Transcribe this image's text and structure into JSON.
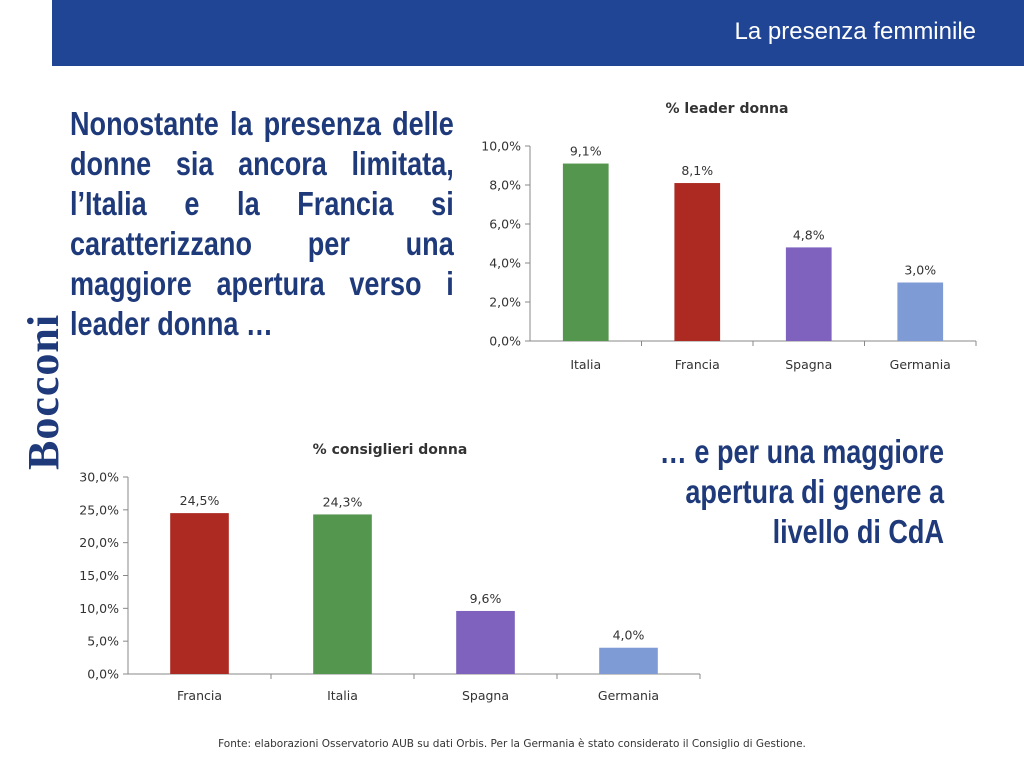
{
  "header": {
    "title": "La presenza femminile"
  },
  "logo": {
    "text": "Bocconi"
  },
  "headline_left": "Nonostante la presenza delle donne sia ancora limitata, l’Italia e la Francia si caratterizzano per una maggiore apertura verso i leader donna …",
  "headline_right": "… e per una maggiore apertura di genere a livello di CdA",
  "source": "Fonte: elaborazioni Osservatorio AUB su dati Orbis. Per la Germania è stato considerato il Consiglio di Gestione.",
  "colors": {
    "header_bg": "#1f4594",
    "headline": "#1f3a7a",
    "green": "#55964f",
    "red": "#ac2a22",
    "purple": "#7e62bd",
    "blue": "#7f9bd6"
  },
  "chart_data": [
    {
      "type": "bar",
      "title": "% leader donna",
      "categories": [
        "Italia",
        "Francia",
        "Spagna",
        "Germania"
      ],
      "values": [
        9.1,
        8.1,
        4.8,
        3.0
      ],
      "value_labels": [
        "9,1%",
        "8,1%",
        "4,8%",
        "3,0%"
      ],
      "bar_colors": [
        "#55964f",
        "#ac2a22",
        "#7e62bd",
        "#7f9bd6"
      ],
      "ylim": [
        0,
        10
      ],
      "yticks": [
        0,
        2,
        4,
        6,
        8,
        10
      ],
      "ytick_labels": [
        "0,0%",
        "2,0%",
        "4,0%",
        "6,0%",
        "8,0%",
        "10,0%"
      ],
      "xlabel": "",
      "ylabel": "",
      "grid": false,
      "legend": "none"
    },
    {
      "type": "bar",
      "title": "% consiglieri donna",
      "categories": [
        "Francia",
        "Italia",
        "Spagna",
        "Germania"
      ],
      "values": [
        24.5,
        24.3,
        9.6,
        4.0
      ],
      "value_labels": [
        "24,5%",
        "24,3%",
        "9,6%",
        "4,0%"
      ],
      "bar_colors": [
        "#ac2a22",
        "#55964f",
        "#7e62bd",
        "#7f9bd6"
      ],
      "ylim": [
        0,
        30
      ],
      "yticks": [
        0,
        5,
        10,
        15,
        20,
        25,
        30
      ],
      "ytick_labels": [
        "0,0%",
        "5,0%",
        "10,0%",
        "15,0%",
        "20,0%",
        "25,0%",
        "30,0%"
      ],
      "xlabel": "",
      "ylabel": "",
      "grid": false,
      "legend": "none"
    }
  ]
}
